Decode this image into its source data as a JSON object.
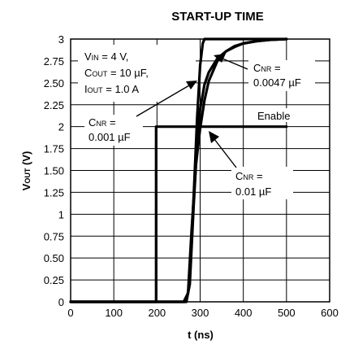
{
  "chart_data": {
    "type": "line",
    "title": "START-UP TIME",
    "xlabel": "t (ns)",
    "ylabel_main": "V",
    "ylabel_sub": "OUT",
    "ylabel_unit": " (V)",
    "xlim": [
      0,
      600
    ],
    "ylim": [
      0,
      3
    ],
    "xticks": [
      0,
      100,
      200,
      300,
      400,
      500,
      600
    ],
    "xtick_labels": [
      "0",
      "100",
      "200",
      "300",
      "400",
      "500",
      "600"
    ],
    "yticks": [
      0,
      0.25,
      0.5,
      0.75,
      1,
      1.25,
      1.5,
      1.75,
      2,
      2.25,
      2.5,
      2.75,
      3
    ],
    "ytick_labels": [
      "0",
      "0.25",
      "0.50",
      "0.75",
      "1",
      "1.25",
      "1.50",
      "1.75",
      "2",
      "2.25",
      "2.50",
      "2.75",
      "3"
    ],
    "grid": true,
    "series": [
      {
        "name": "Enable",
        "x": [
          0,
          198,
          198,
          500
        ],
        "y": [
          0,
          0,
          2,
          2
        ]
      },
      {
        "name": "CNR = 0.001 µF",
        "x": [
          0,
          268,
          275,
          285,
          293,
          300,
          306,
          310,
          330,
          500
        ],
        "y": [
          0,
          0,
          0.2,
          1.2,
          2.1,
          2.7,
          2.95,
          3,
          3,
          3
        ]
      },
      {
        "name": "CNR = 0.0047 µF",
        "x": [
          0,
          268,
          276,
          285,
          293,
          300,
          310,
          320,
          340,
          360,
          380,
          400,
          430,
          460,
          500
        ],
        "y": [
          0,
          0,
          0.2,
          1.1,
          1.8,
          2.2,
          2.48,
          2.62,
          2.78,
          2.86,
          2.91,
          2.95,
          2.975,
          2.99,
          3
        ]
      },
      {
        "name": "CNR = 0.01 µF",
        "x": [
          0,
          262,
          272,
          280,
          290,
          300,
          310,
          320,
          340,
          360,
          380,
          400,
          430,
          460,
          500
        ],
        "y": [
          0,
          0,
          0.1,
          0.8,
          1.55,
          1.98,
          2.3,
          2.52,
          2.75,
          2.86,
          2.92,
          2.95,
          2.975,
          2.99,
          3
        ]
      }
    ],
    "annotations": {
      "conditions": {
        "line1_main": "V",
        "line1_sub": "IN",
        "line1_rest": " = 4 V,",
        "line2_main": "C",
        "line2_sub": "OUT",
        "line2_rest": " = 10 µF,",
        "line3_main": "I",
        "line3_sub": "OUT",
        "line3_rest": " = 1.0 A"
      },
      "cnr_0001": {
        "main": "C",
        "sub": "NR",
        "rest": " =",
        "value": "0.001 µF"
      },
      "cnr_00047": {
        "main": "C",
        "sub": "NR",
        "rest": " =",
        "value": "0.0047 µF"
      },
      "cnr_001": {
        "main": "C",
        "sub": "NR",
        "rest": " =",
        "value": "0.01 µF"
      },
      "enable": "Enable"
    }
  }
}
